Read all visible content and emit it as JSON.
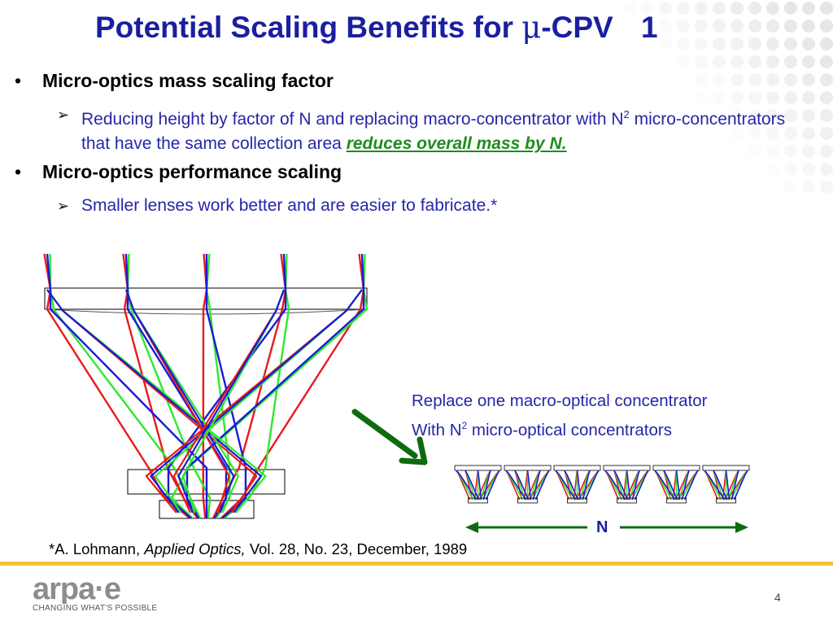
{
  "slide": {
    "title": "Potential Scaling Benefits for",
    "title_mu": "μ",
    "title_rest": "-CPV",
    "title_number": "1",
    "bullet_char": "•",
    "sub_arrow": "➢",
    "bullets": [
      {
        "heading": "Micro-optics mass scaling factor",
        "sub_pre": "Reducing height by factor of N and replacing macro-concentrator with N",
        "sub_sup": "2",
        "sub_post": " micro-concentrators that have the same collection area ",
        "sub_emphasis": "reduces overall mass by N."
      },
      {
        "heading": "Micro-optics performance scaling",
        "sub_text": "Smaller lenses work better and are easier to fabricate.*"
      }
    ],
    "caption_line1": "Replace one macro-optical concentrator",
    "caption_line2_pre": "With N",
    "caption_line2_sup": "2",
    "caption_line2_post": " micro-optical concentrators",
    "n_label": "N",
    "footnote_pre": "*A. Lohmann, ",
    "footnote_journal": "Applied Optics,",
    "footnote_post": " Vol. 28, No. 23, December, 1989",
    "logo_text": "arpa·e",
    "tagline": "CHANGING WHAT'S POSSIBLE",
    "page_number": "4"
  },
  "colors": {
    "title": "#1a1fa0",
    "body_blue": "#2626a8",
    "emphasis_green": "#1f8c1f",
    "arrow_green": "#0e6b0e",
    "rule_gold": "#f2c33a",
    "ray_red": "#e81b1b",
    "ray_green": "#2ee82e",
    "ray_blue": "#1a1ad8"
  },
  "micro_count": 6
}
